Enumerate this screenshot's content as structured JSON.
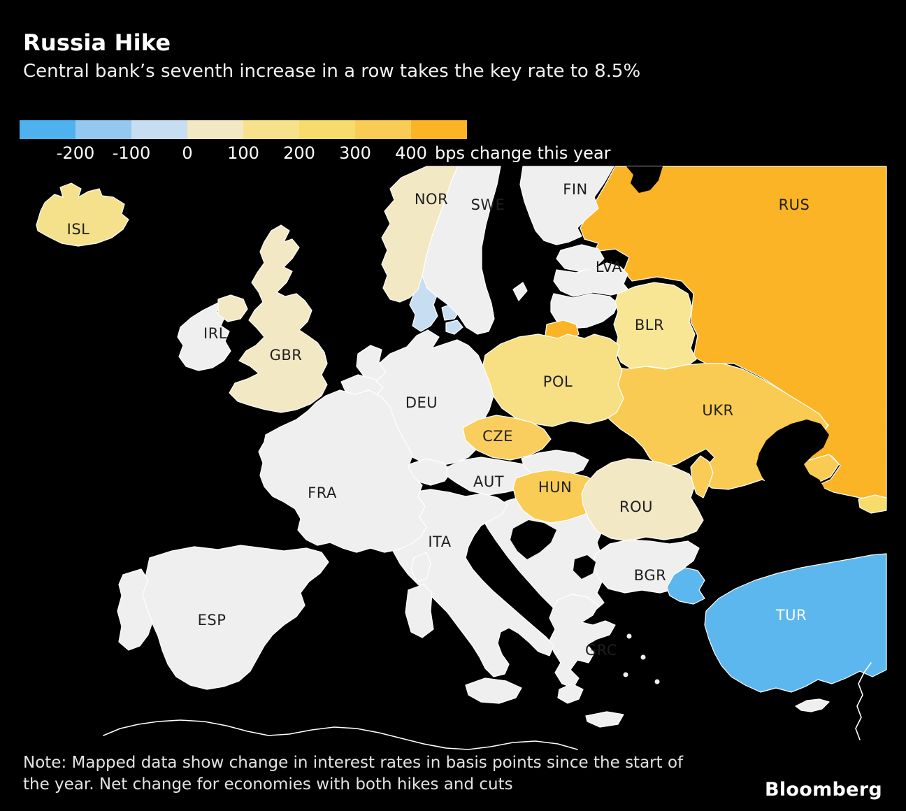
{
  "header": {
    "title": "Russia Hike",
    "subtitle": "Central bank’s seventh increase in a row takes the key rate to 8.5%"
  },
  "legend": {
    "colors": [
      "#4FB2EF",
      "#93C9F0",
      "#C7DDF1",
      "#F3E8C4",
      "#F7E28C",
      "#F7DC6C",
      "#F9CC55",
      "#FAB425"
    ],
    "ticks": [
      "-200",
      "-100",
      "0",
      "100",
      "200",
      "300",
      "400"
    ],
    "suffix": "bps change this year"
  },
  "map": {
    "sea_color": "#000000",
    "no_change_color": "#EFEFEF",
    "border_color": "#FFFFFF",
    "default_label_color": "#1f1f1f",
    "countries": [
      {
        "id": "RUS",
        "label": "RUS",
        "fill": "#FAB425",
        "bin": "400+"
      },
      {
        "id": "WHITESEA",
        "label": null,
        "fill": "#000000",
        "bin": "sea"
      },
      {
        "id": "FIN",
        "label": "FIN",
        "fill": "#EFEFEF",
        "bin": "no change"
      },
      {
        "id": "EST",
        "label": null,
        "fill": "#EFEFEF",
        "bin": "no change"
      },
      {
        "id": "LVA",
        "label": "LVA",
        "fill": "#EFEFEF",
        "bin": "no change"
      },
      {
        "id": "LTU",
        "label": null,
        "fill": "#EFEFEF",
        "bin": "no change"
      },
      {
        "id": "KGD",
        "label": null,
        "fill": "#FAB425",
        "bin": "400+"
      },
      {
        "id": "BLR",
        "label": "BLR",
        "fill": "#F8E695",
        "bin": "100-200"
      },
      {
        "id": "UKR",
        "label": "UKR",
        "fill": "#FACB52",
        "bin": "300-400"
      },
      {
        "id": "AZOV",
        "label": null,
        "fill": "#000000",
        "bin": "sea"
      },
      {
        "id": "GEO",
        "label": null,
        "fill": "#F7DC6C",
        "bin": "200-300"
      },
      {
        "id": "POL",
        "label": "POL",
        "fill": "#F7E083",
        "bin": "100-200"
      },
      {
        "id": "DEU",
        "label": "DEU",
        "fill": "#EFEFEF",
        "bin": "no change"
      },
      {
        "id": "DNK",
        "label": null,
        "fill": "#C7DDF1",
        "bin": "-100-0"
      },
      {
        "id": "DNKI1",
        "label": null,
        "fill": "#C7DDF1",
        "bin": "-100-0"
      },
      {
        "id": "DNKI2",
        "label": null,
        "fill": "#C7DDF1",
        "bin": "-100-0"
      },
      {
        "id": "NLD",
        "label": null,
        "fill": "#EFEFEF",
        "bin": "no change"
      },
      {
        "id": "BEL",
        "label": null,
        "fill": "#EFEFEF",
        "bin": "no change"
      },
      {
        "id": "CHE",
        "label": null,
        "fill": "#EFEFEF",
        "bin": "no change"
      },
      {
        "id": "BALK",
        "label": null,
        "fill": "#EFEFEF",
        "bin": "no change"
      },
      {
        "id": "AUT",
        "label": "AUT",
        "fill": "#EFEFEF",
        "bin": "no change"
      },
      {
        "id": "CZE",
        "label": "CZE",
        "fill": "#F9CE5F",
        "bin": "300-400"
      },
      {
        "id": "SVK",
        "label": null,
        "fill": "#EFEFEF",
        "bin": "no change"
      },
      {
        "id": "HUN",
        "label": "HUN",
        "fill": "#F9CC55",
        "bin": "300-400"
      },
      {
        "id": "ROU",
        "label": "ROU",
        "fill": "#F3E8C4",
        "bin": "0-100"
      },
      {
        "id": "MDA",
        "label": null,
        "fill": "#F9CC55",
        "bin": "300-400"
      },
      {
        "id": "BGR",
        "label": "BGR",
        "fill": "#EFEFEF",
        "bin": "no change"
      },
      {
        "id": "GRC",
        "label": "GRC",
        "fill": "#EFEFEF",
        "bin": "no change"
      },
      {
        "id": "PELOP",
        "label": null,
        "fill": "#EFEFEF",
        "bin": "no change"
      },
      {
        "id": "CRETE",
        "label": null,
        "fill": "#EFEFEF",
        "bin": "no change"
      },
      {
        "id": "BIH",
        "label": null,
        "fill": "#000000",
        "bin": "no data"
      },
      {
        "id": "KOS",
        "label": null,
        "fill": "#000000",
        "bin": "no data"
      },
      {
        "id": "TUR1",
        "label": null,
        "fill": "#5BB7EE",
        "bin": "below -200"
      },
      {
        "id": "TUR2",
        "label": "TUR",
        "fill": "#5BB7EE",
        "bin": "below -200",
        "label_color": "#ffffff"
      },
      {
        "id": "CYP",
        "label": null,
        "fill": "#EFEFEF",
        "bin": "no change"
      },
      {
        "id": "ITA",
        "label": "ITA",
        "fill": "#EFEFEF",
        "bin": "no change"
      },
      {
        "id": "SIC",
        "label": null,
        "fill": "#EFEFEF",
        "bin": "no change"
      },
      {
        "id": "SAR",
        "label": null,
        "fill": "#EFEFEF",
        "bin": "no change"
      },
      {
        "id": "COR",
        "label": null,
        "fill": "#EFEFEF",
        "bin": "no change"
      },
      {
        "id": "FRA",
        "label": "FRA",
        "fill": "#EFEFEF",
        "bin": "no change"
      },
      {
        "id": "ESP",
        "label": "ESP",
        "fill": "#EFEFEF",
        "bin": "no change"
      },
      {
        "id": "PRT",
        "label": null,
        "fill": "#EFEFEF",
        "bin": "no change"
      },
      {
        "id": "GBR",
        "label": "GBR",
        "fill": "#F3E8C4",
        "bin": "0-100"
      },
      {
        "id": "IRL",
        "label": "IRL",
        "fill": "#EFEFEF",
        "bin": "no change"
      },
      {
        "id": "NIR",
        "label": null,
        "fill": "#F3E8C4",
        "bin": "0-100"
      },
      {
        "id": "ISL",
        "label": "ISL",
        "fill": "#F5E18C",
        "bin": "100-200"
      },
      {
        "id": "NOR",
        "label": "NOR",
        "fill": "#F3E8C4",
        "bin": "0-100"
      },
      {
        "id": "SWE",
        "label": "SWE",
        "fill": "#EFEFEF",
        "bin": "no change"
      },
      {
        "id": "GOT",
        "label": null,
        "fill": "#EFEFEF",
        "bin": "no change"
      }
    ]
  },
  "note": {
    "line1": "Note: Mapped data show change in interest rates in basis points since the start of",
    "line2": "the year. Net change for economies with both hikes and cuts"
  },
  "brand": "Bloomberg",
  "chart_data": {
    "type": "choropleth_map",
    "title": "Russia Hike",
    "subtitle": "Central bank’s seventh increase in a row takes the key rate to 8.5%",
    "unit": "bps change this year",
    "legend_bin_edges": [
      -200,
      -100,
      0,
      100,
      200,
      300,
      400
    ],
    "legend_position": "top-left",
    "series": [
      {
        "country": "RUS",
        "bin": "400+"
      },
      {
        "country": "UKR",
        "bin": "300-400"
      },
      {
        "country": "CZE",
        "bin": "300-400"
      },
      {
        "country": "HUN",
        "bin": "300-400"
      },
      {
        "country": "MDA",
        "bin": "300-400"
      },
      {
        "country": "GEO",
        "bin": "200-300"
      },
      {
        "country": "POL",
        "bin": "100-200"
      },
      {
        "country": "BLR",
        "bin": "100-200"
      },
      {
        "country": "ISL",
        "bin": "100-200"
      },
      {
        "country": "NOR",
        "bin": "0-100"
      },
      {
        "country": "GBR",
        "bin": "0-100"
      },
      {
        "country": "ROU",
        "bin": "0-100"
      },
      {
        "country": "DNK",
        "bin": "-100-0"
      },
      {
        "country": "TUR",
        "bin": "below -200"
      },
      {
        "country": "SWE",
        "bin": "no change"
      },
      {
        "country": "FIN",
        "bin": "no change"
      },
      {
        "country": "LVA",
        "bin": "no change"
      },
      {
        "country": "DEU",
        "bin": "no change"
      },
      {
        "country": "FRA",
        "bin": "no change"
      },
      {
        "country": "ESP",
        "bin": "no change"
      },
      {
        "country": "ITA",
        "bin": "no change"
      },
      {
        "country": "AUT",
        "bin": "no change"
      },
      {
        "country": "BGR",
        "bin": "no change"
      },
      {
        "country": "GRC",
        "bin": "no change"
      },
      {
        "country": "IRL",
        "bin": "no change"
      }
    ]
  }
}
